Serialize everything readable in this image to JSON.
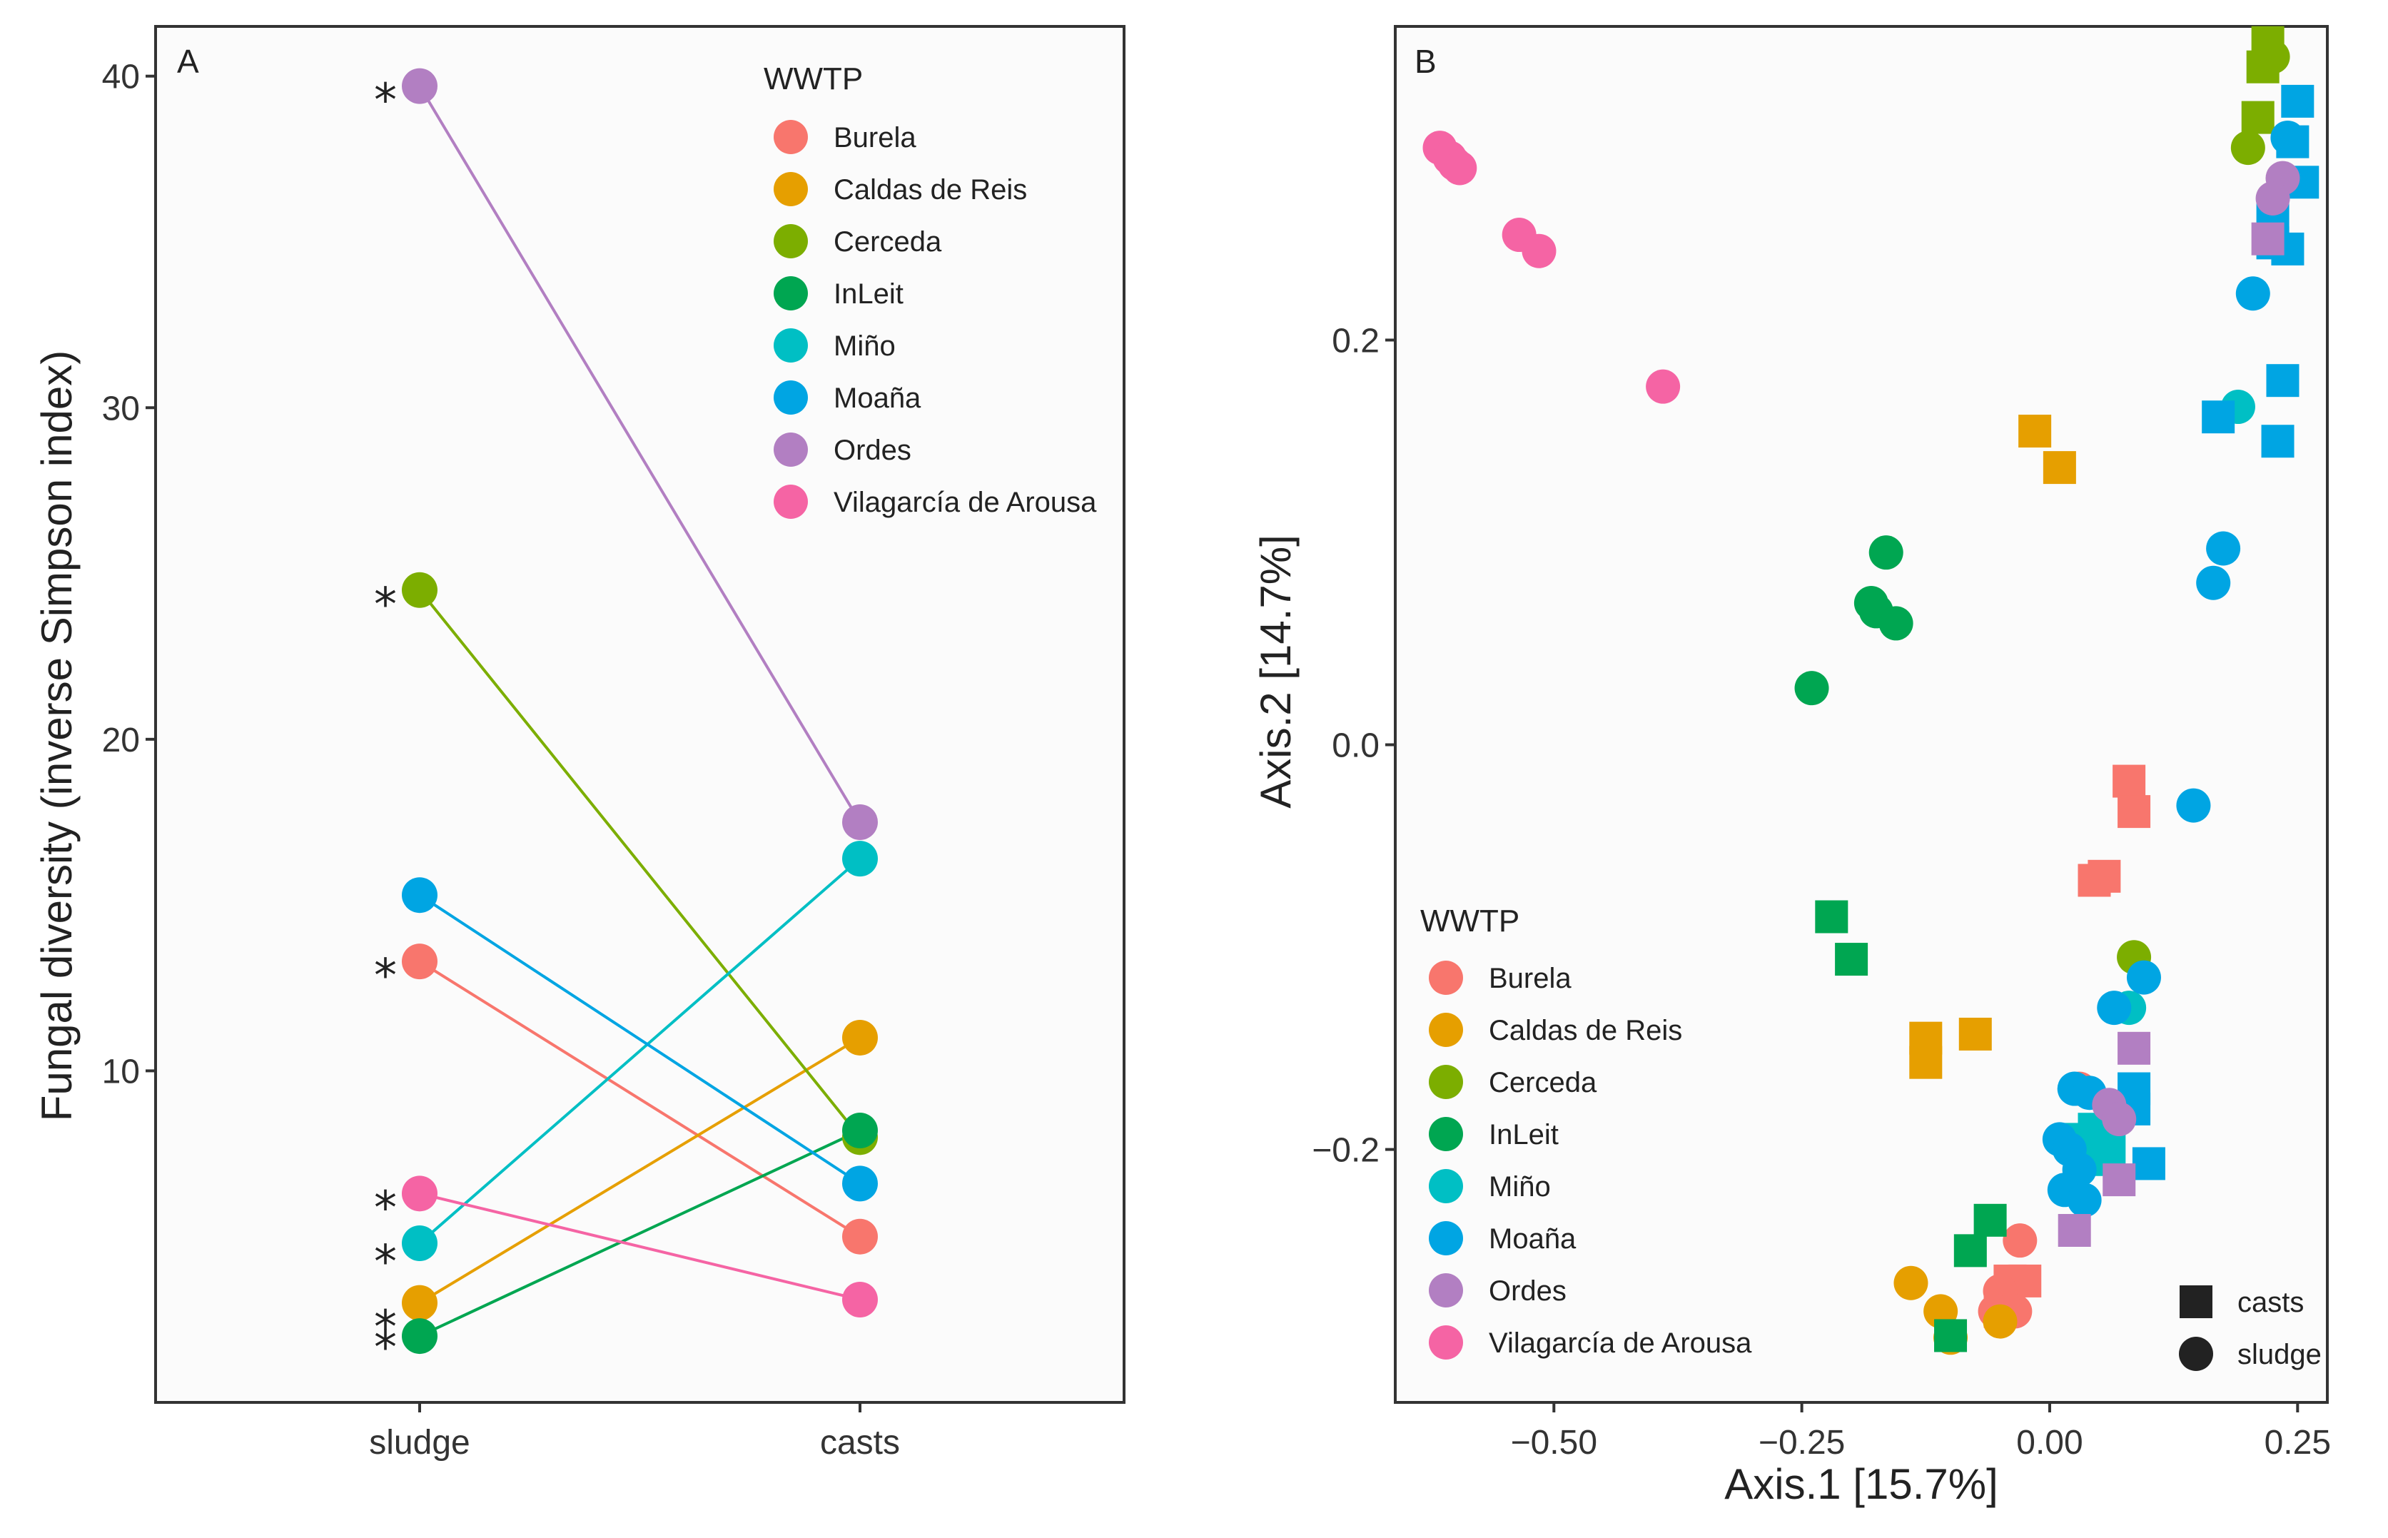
{
  "chart_data": [
    {
      "panel": "A",
      "type": "line",
      "title": "",
      "xlabel": "",
      "ylabel": "Fungal diversity (inverse Simpson index)",
      "categories": [
        "sludge",
        "casts"
      ],
      "ylim": [
        0,
        41.5
      ],
      "yticks": [
        10,
        20,
        30,
        40
      ],
      "legend_title": "WWTP",
      "legend_position": "top-right",
      "significance_marker": "*",
      "series": [
        {
          "name": "Burela",
          "color": "#F8766D",
          "values": [
            13.3,
            5.0
          ],
          "significant": true
        },
        {
          "name": "Caldas de Reis",
          "color": "#E69F00",
          "values": [
            3.0,
            11.0
          ],
          "significant": true
        },
        {
          "name": "Cerceda",
          "color": "#7CAE00",
          "values": [
            24.5,
            8.0
          ],
          "significant": true
        },
        {
          "name": "InLeit",
          "color": "#00A651",
          "values": [
            2.0,
            8.2
          ],
          "significant": true
        },
        {
          "name": "Miño",
          "color": "#00BFC4",
          "values": [
            4.8,
            16.4
          ],
          "significant": true
        },
        {
          "name": "Moaña",
          "color": "#00A5E3",
          "values": [
            15.3,
            6.6
          ],
          "significant": false
        },
        {
          "name": "Ordes",
          "color": "#B27FC2",
          "values": [
            39.7,
            17.5
          ],
          "significant": true
        },
        {
          "name": "Vilagarcía de Arousa",
          "color": "#F564A4",
          "values": [
            6.3,
            3.1
          ],
          "significant": true
        }
      ]
    },
    {
      "panel": "B",
      "type": "scatter",
      "title": "",
      "xlabel": "Axis.1   [15.7%]",
      "ylabel": "Axis.2   [14.7%]",
      "xlim": [
        -0.66,
        0.28
      ],
      "ylim": [
        -0.325,
        0.355
      ],
      "xticks": [
        -0.5,
        -0.25,
        0.0,
        0.25
      ],
      "xtick_labels": [
        "−0.50",
        "−0.25",
        "0.00",
        "0.25"
      ],
      "yticks": [
        -0.2,
        0.0,
        0.2
      ],
      "ytick_labels": [
        "−0.2",
        "0.0",
        "0.2"
      ],
      "legend_title": "WWTP",
      "legend_position": "bottom-left",
      "shape_legend": [
        {
          "shape": "square",
          "label": "casts"
        },
        {
          "shape": "circle",
          "label": "sludge"
        }
      ],
      "series": [
        {
          "name": "Burela",
          "color": "#F8766D",
          "points": [
            [
              0.08,
              -0.018,
              "casts"
            ],
            [
              0.085,
              -0.033,
              "casts"
            ],
            [
              0.055,
              -0.065,
              "casts"
            ],
            [
              0.045,
              -0.067,
              "casts"
            ],
            [
              -0.04,
              -0.265,
              "casts"
            ],
            [
              -0.025,
              -0.265,
              "casts"
            ],
            [
              -0.05,
              -0.28,
              "casts"
            ],
            [
              -0.03,
              -0.245,
              "sludge"
            ],
            [
              -0.05,
              -0.27,
              "sludge"
            ],
            [
              -0.055,
              -0.28,
              "sludge"
            ],
            [
              -0.035,
              -0.28,
              "sludge"
            ],
            [
              0.03,
              -0.17,
              "sludge"
            ]
          ]
        },
        {
          "name": "Caldas de Reis",
          "color": "#E69F00",
          "points": [
            [
              -0.015,
              0.155,
              "casts"
            ],
            [
              0.01,
              0.137,
              "casts"
            ],
            [
              -0.075,
              -0.143,
              "casts"
            ],
            [
              -0.125,
              -0.145,
              "casts"
            ],
            [
              -0.125,
              -0.157,
              "casts"
            ],
            [
              -0.14,
              -0.266,
              "sludge"
            ],
            [
              -0.11,
              -0.28,
              "sludge"
            ],
            [
              -0.1,
              -0.293,
              "sludge"
            ],
            [
              -0.05,
              -0.285,
              "sludge"
            ]
          ]
        },
        {
          "name": "Cerceda",
          "color": "#7CAE00",
          "points": [
            [
              0.22,
              0.347,
              "casts"
            ],
            [
              0.215,
              0.335,
              "casts"
            ],
            [
              0.21,
              0.31,
              "casts"
            ],
            [
              0.225,
              0.34,
              "sludge"
            ],
            [
              0.2,
              0.295,
              "sludge"
            ],
            [
              0.085,
              -0.105,
              "sludge"
            ]
          ]
        },
        {
          "name": "InLeit",
          "color": "#00A651",
          "points": [
            [
              -0.22,
              -0.085,
              "casts"
            ],
            [
              -0.2,
              -0.106,
              "casts"
            ],
            [
              -0.06,
              -0.235,
              "casts"
            ],
            [
              -0.08,
              -0.25,
              "casts"
            ],
            [
              -0.1,
              -0.292,
              "casts"
            ],
            [
              -0.165,
              0.095,
              "sludge"
            ],
            [
              -0.18,
              0.07,
              "sludge"
            ],
            [
              -0.175,
              0.066,
              "sludge"
            ],
            [
              -0.155,
              0.06,
              "sludge"
            ],
            [
              -0.24,
              0.028,
              "sludge"
            ]
          ]
        },
        {
          "name": "Miño",
          "color": "#00BFC4",
          "points": [
            [
              0.03,
              -0.195,
              "casts"
            ],
            [
              0.045,
              -0.19,
              "casts"
            ],
            [
              0.06,
              -0.2,
              "casts"
            ],
            [
              0.05,
              -0.205,
              "casts"
            ],
            [
              0.19,
              0.167,
              "sludge"
            ],
            [
              0.08,
              -0.13,
              "sludge"
            ],
            [
              0.05,
              -0.2,
              "sludge"
            ]
          ]
        },
        {
          "name": "Moaña",
          "color": "#00A5E3",
          "points": [
            [
              0.25,
              0.318,
              "casts"
            ],
            [
              0.245,
              0.298,
              "casts"
            ],
            [
              0.255,
              0.278,
              "casts"
            ],
            [
              0.225,
              0.26,
              "casts"
            ],
            [
              0.225,
              0.248,
              "casts"
            ],
            [
              0.24,
              0.245,
              "casts"
            ],
            [
              0.235,
              0.18,
              "casts"
            ],
            [
              0.17,
              0.162,
              "casts"
            ],
            [
              0.23,
              0.15,
              "casts"
            ],
            [
              0.085,
              -0.17,
              "casts"
            ],
            [
              0.085,
              -0.18,
              "casts"
            ],
            [
              0.1,
              -0.207,
              "casts"
            ],
            [
              0.24,
              0.3,
              "sludge"
            ],
            [
              0.205,
              0.223,
              "sludge"
            ],
            [
              0.175,
              0.097,
              "sludge"
            ],
            [
              0.165,
              0.08,
              "sludge"
            ],
            [
              0.145,
              -0.03,
              "sludge"
            ],
            [
              0.095,
              -0.115,
              "sludge"
            ],
            [
              0.065,
              -0.13,
              "sludge"
            ],
            [
              0.025,
              -0.17,
              "sludge"
            ],
            [
              0.04,
              -0.172,
              "sludge"
            ],
            [
              0.01,
              -0.195,
              "sludge"
            ],
            [
              0.02,
              -0.2,
              "sludge"
            ],
            [
              0.03,
              -0.21,
              "sludge"
            ],
            [
              0.015,
              -0.22,
              "sludge"
            ],
            [
              0.035,
              -0.225,
              "sludge"
            ]
          ]
        },
        {
          "name": "Ordes",
          "color": "#B27FC2",
          "points": [
            [
              0.085,
              -0.15,
              "casts"
            ],
            [
              0.07,
              -0.215,
              "casts"
            ],
            [
              0.025,
              -0.24,
              "casts"
            ],
            [
              0.22,
              0.25,
              "casts"
            ],
            [
              0.235,
              0.28,
              "sludge"
            ],
            [
              0.225,
              0.27,
              "sludge"
            ],
            [
              0.06,
              -0.178,
              "sludge"
            ],
            [
              0.07,
              -0.185,
              "sludge"
            ]
          ]
        },
        {
          "name": "Vilagarcía de Arousa",
          "color": "#F564A4",
          "points": [
            [
              -0.615,
              0.295,
              "sludge"
            ],
            [
              -0.605,
              0.29,
              "sludge"
            ],
            [
              -0.6,
              0.287,
              "sludge"
            ],
            [
              -0.595,
              0.285,
              "sludge"
            ],
            [
              -0.535,
              0.252,
              "sludge"
            ],
            [
              -0.515,
              0.244,
              "sludge"
            ],
            [
              -0.39,
              0.177,
              "sludge"
            ]
          ]
        }
      ]
    }
  ]
}
